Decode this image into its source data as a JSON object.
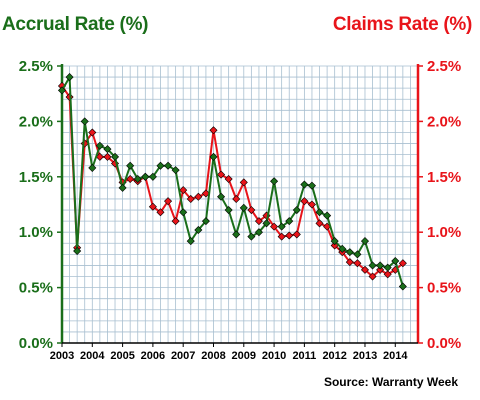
{
  "chart_data": {
    "type": "line",
    "title_left": "Accrual Rate (%)",
    "title_right": "Claims Rate (%)",
    "source": "Source: Warranty Week",
    "y_ticks": [
      "0.0%",
      "0.5%",
      "1.0%",
      "1.5%",
      "2.0%",
      "2.5%"
    ],
    "ylim": [
      0,
      2.5
    ],
    "x_tick_labels": [
      "2003",
      "2004",
      "2005",
      "2006",
      "2007",
      "2008",
      "2009",
      "2010",
      "2011",
      "2012",
      "2013",
      "2014"
    ],
    "xlim": [
      2003.0,
      2014.75
    ],
    "grid": true,
    "colors": {
      "accrual": "#1a6e1a",
      "claims": "#e8141a",
      "grid": "#a8bfd0"
    },
    "series": [
      {
        "name": "Accrual Rate (%)",
        "axis": "left",
        "x": [
          2003.0,
          2003.25,
          2003.5,
          2003.75,
          2004.0,
          2004.25,
          2004.5,
          2004.75,
          2005.0,
          2005.25,
          2005.5,
          2005.75,
          2006.0,
          2006.25,
          2006.5,
          2006.75,
          2007.0,
          2007.25,
          2007.5,
          2007.75,
          2008.0,
          2008.25,
          2008.5,
          2008.75,
          2009.0,
          2009.25,
          2009.5,
          2009.75,
          2010.0,
          2010.25,
          2010.5,
          2010.75,
          2011.0,
          2011.25,
          2011.5,
          2011.75,
          2012.0,
          2012.25,
          2012.5,
          2012.75,
          2013.0,
          2013.25,
          2013.5,
          2013.75,
          2014.0,
          2014.25
        ],
        "values": [
          2.28,
          2.4,
          0.83,
          2.0,
          1.58,
          1.78,
          1.75,
          1.68,
          1.4,
          1.6,
          1.48,
          1.5,
          1.5,
          1.6,
          1.6,
          1.56,
          1.18,
          0.92,
          1.02,
          1.1,
          1.68,
          1.32,
          1.2,
          0.98,
          1.22,
          0.96,
          1.0,
          1.08,
          1.46,
          1.05,
          1.1,
          1.2,
          1.43,
          1.42,
          1.18,
          1.15,
          0.92,
          0.85,
          0.82,
          0.8,
          0.92,
          0.7,
          0.7,
          0.68,
          0.74,
          0.51
        ]
      },
      {
        "name": "Claims Rate (%)",
        "axis": "right",
        "x": [
          2003.0,
          2003.25,
          2003.5,
          2003.75,
          2004.0,
          2004.25,
          2004.5,
          2004.75,
          2005.0,
          2005.25,
          2005.5,
          2005.75,
          2006.0,
          2006.25,
          2006.5,
          2006.75,
          2007.0,
          2007.25,
          2007.5,
          2007.75,
          2008.0,
          2008.25,
          2008.5,
          2008.75,
          2009.0,
          2009.25,
          2009.5,
          2009.75,
          2010.0,
          2010.25,
          2010.5,
          2010.75,
          2011.0,
          2011.25,
          2011.5,
          2011.75,
          2012.0,
          2012.25,
          2012.5,
          2012.75,
          2013.0,
          2013.25,
          2013.5,
          2013.75,
          2014.0,
          2014.25
        ],
        "values": [
          2.32,
          2.22,
          0.86,
          1.8,
          1.9,
          1.68,
          1.68,
          1.62,
          1.45,
          1.48,
          1.46,
          1.5,
          1.23,
          1.18,
          1.28,
          1.1,
          1.38,
          1.3,
          1.32,
          1.35,
          1.92,
          1.52,
          1.48,
          1.3,
          1.45,
          1.2,
          1.1,
          1.15,
          1.05,
          0.96,
          0.97,
          0.98,
          1.28,
          1.25,
          1.08,
          1.05,
          0.88,
          0.82,
          0.73,
          0.72,
          0.66,
          0.6,
          0.66,
          0.62,
          0.66,
          0.72
        ]
      }
    ]
  }
}
